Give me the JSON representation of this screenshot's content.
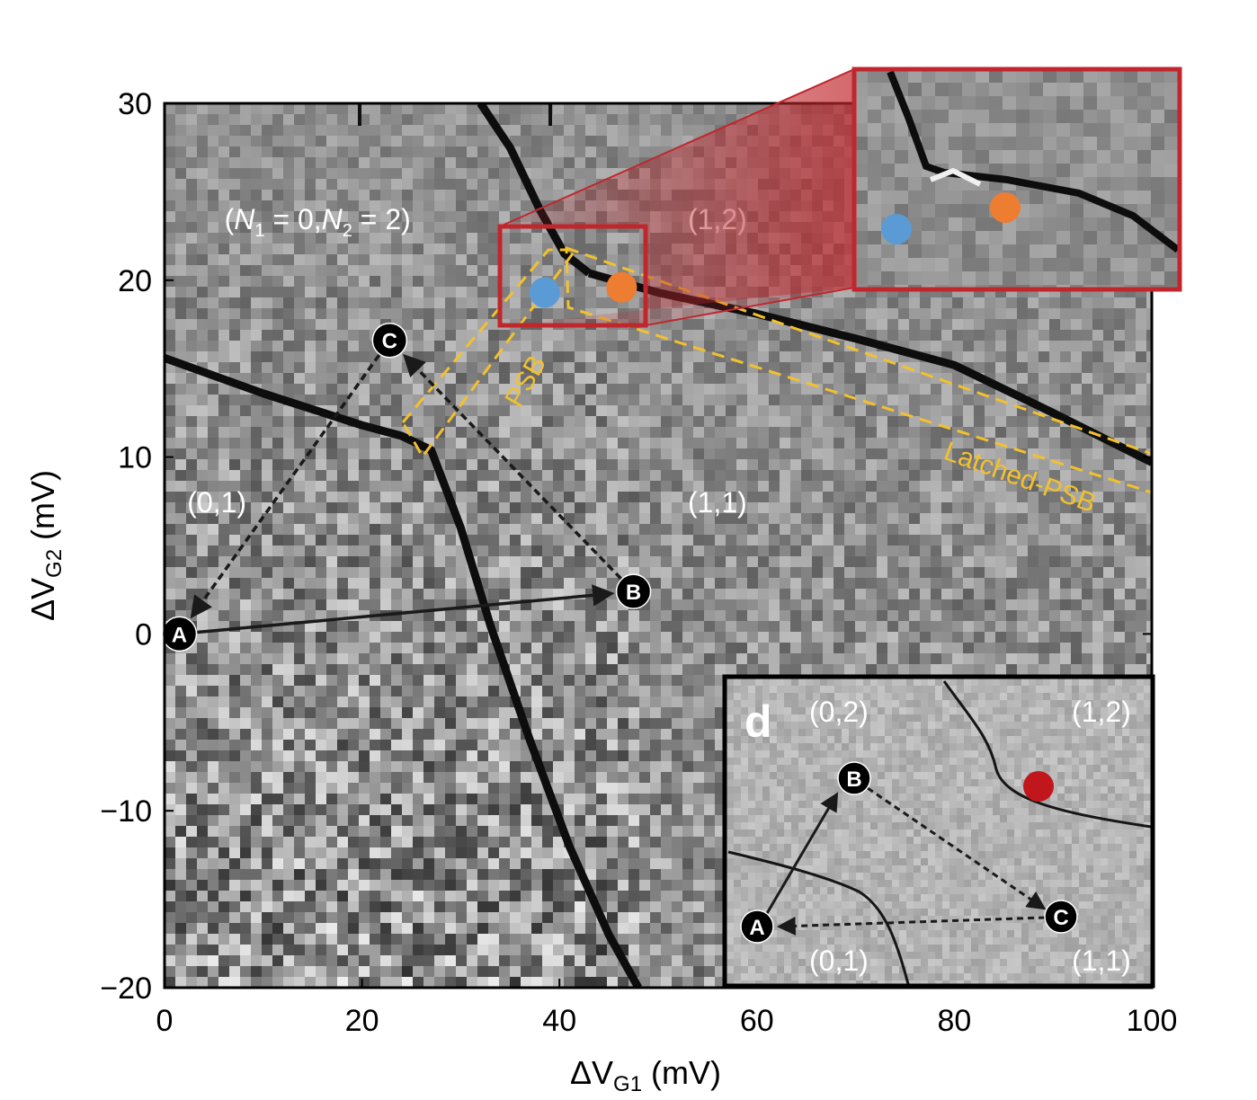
{
  "chart_data": {
    "type": "heatmap",
    "xlabel": "ΔV",
    "xlabel_sub": "G1",
    "xlabel_unit": " (mV)",
    "ylabel": "ΔV",
    "ylabel_sub": "G2",
    "ylabel_unit": " (mV)",
    "xlim": [
      0,
      100
    ],
    "ylim": [
      -20,
      30
    ],
    "xticks": [
      "0",
      "20",
      "40",
      "60",
      "80",
      "100"
    ],
    "yticks": [
      "−20",
      "−10",
      "0",
      "10",
      "20",
      "30"
    ],
    "grid": false,
    "colormap": "grayscale",
    "charge_lines": [
      {
        "name": "left-line",
        "points": [
          [
            0,
            15.6
          ],
          [
            10,
            13.6
          ],
          [
            20,
            11.8
          ],
          [
            24,
            11.2
          ],
          [
            27,
            10.4
          ],
          [
            30,
            6
          ],
          [
            33,
            0.5
          ],
          [
            37,
            -6
          ],
          [
            41,
            -12
          ],
          [
            45,
            -17
          ],
          [
            48,
            -20
          ]
        ]
      },
      {
        "name": "steep-line",
        "points": [
          [
            32,
            30
          ],
          [
            35,
            27.5
          ],
          [
            38,
            24
          ],
          [
            40.5,
            21.5
          ],
          [
            43,
            20.4
          ]
        ]
      },
      {
        "name": "interdot-line",
        "points": [
          [
            43,
            20.4
          ],
          [
            50,
            19.3
          ],
          [
            60,
            18.1
          ],
          [
            70,
            16.7
          ],
          [
            80,
            15.2
          ],
          [
            90,
            12.5
          ],
          [
            100,
            9.7
          ]
        ]
      }
    ],
    "regions": [
      {
        "label_parts": [
          "(",
          "N",
          "1",
          " = 0,",
          "N",
          "2",
          " = 2)"
        ],
        "x": 15.5,
        "y": 23.5
      },
      {
        "label": "(1,2)",
        "x": 56,
        "y": 23.5
      },
      {
        "label": "(0,1)",
        "x": 5.3,
        "y": 7.5
      },
      {
        "label": "(1,1)",
        "x": 56,
        "y": 7.5
      }
    ],
    "points": [
      {
        "label": "A",
        "x": 1.5,
        "y": 0
      },
      {
        "label": "B",
        "x": 47.5,
        "y": 2.4
      },
      {
        "label": "C",
        "x": 22.8,
        "y": 16.6
      }
    ],
    "paths": [
      {
        "from": "A",
        "to": "B",
        "style": "solid"
      },
      {
        "from": "B",
        "to": "C",
        "style": "dashed"
      },
      {
        "from": "C",
        "to": "A",
        "style": "dashed"
      }
    ],
    "markers": [
      {
        "color": "#5b9bd5",
        "x": 38.5,
        "y": 19.3
      },
      {
        "color": "#ed7d31",
        "x": 46.3,
        "y": 19.6
      }
    ],
    "annotations": [
      {
        "label": "PSB",
        "color": "#f2c12e"
      },
      {
        "label": "Latched-PSB",
        "color": "#f2c12e"
      }
    ]
  },
  "inset_d": {
    "panel_label": "d",
    "regions": [
      "(0,2)",
      "(1,2)",
      "(0,1)",
      "(1,1)"
    ],
    "points": [
      "A",
      "B",
      "C"
    ],
    "marker_color": "#c0161c",
    "paths": [
      {
        "from": "A",
        "to": "B",
        "style": "solid"
      },
      {
        "from": "B",
        "to": "C",
        "style": "dashed"
      },
      {
        "from": "C",
        "to": "A",
        "style": "dashed"
      }
    ]
  },
  "colors": {
    "zoom_frame": "#c0272d",
    "psb": "#f2c12e",
    "blue_marker": "#5b9bd5",
    "orange_marker": "#ed7d31"
  }
}
